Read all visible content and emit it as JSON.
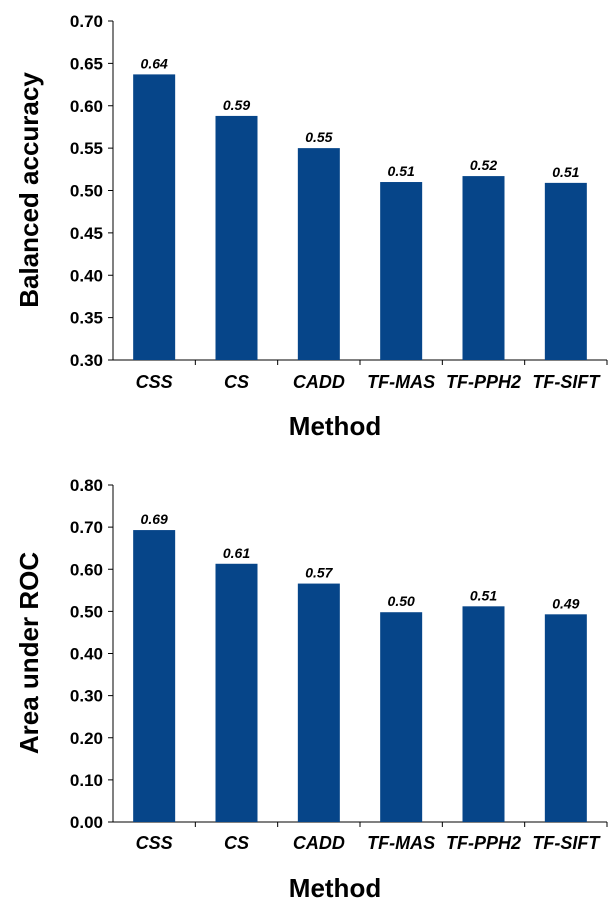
{
  "chart_data": [
    {
      "type": "bar",
      "xlabel": "Method",
      "ylabel": "Balanced accuracy",
      "ylim": [
        0.3,
        0.7
      ],
      "yticks": [
        "0.30",
        "0.35",
        "0.40",
        "0.45",
        "0.50",
        "0.55",
        "0.60",
        "0.65",
        "0.70"
      ],
      "categories": [
        "CSS",
        "CS",
        "CADD",
        "TF-MAS",
        "TF-PPH2",
        "TF-SIFT"
      ],
      "values": [
        0.637,
        0.588,
        0.55,
        0.51,
        0.517,
        0.509
      ],
      "data_labels": [
        "0.64",
        "0.59",
        "0.55",
        "0.51",
        "0.52",
        "0.51"
      ],
      "grid": false,
      "legend": "none",
      "bar_color": "#064589"
    },
    {
      "type": "bar",
      "xlabel": "Method",
      "ylabel": "Area under ROC",
      "ylim": [
        0.0,
        0.8
      ],
      "yticks": [
        "0.00",
        "0.10",
        "0.20",
        "0.30",
        "0.40",
        "0.50",
        "0.60",
        "0.70",
        "0.80"
      ],
      "categories": [
        "CSS",
        "CS",
        "CADD",
        "TF-MAS",
        "TF-PPH2",
        "TF-SIFT"
      ],
      "values": [
        0.693,
        0.613,
        0.566,
        0.498,
        0.512,
        0.493
      ],
      "data_labels": [
        "0.69",
        "0.61",
        "0.57",
        "0.50",
        "0.51",
        "0.49"
      ],
      "grid": false,
      "legend": "none",
      "bar_color": "#064589"
    }
  ]
}
